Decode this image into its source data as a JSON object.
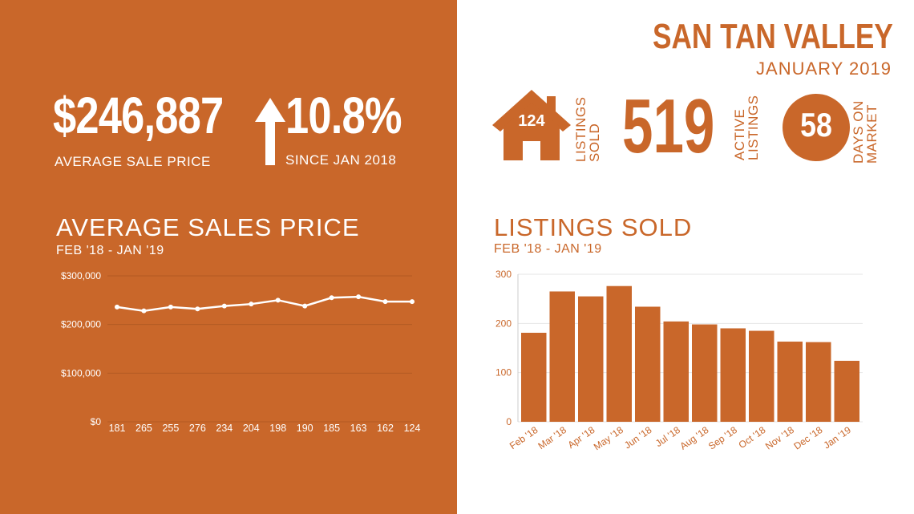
{
  "header": {
    "city": "SAN TAN VALLEY",
    "month": "JANUARY 2019"
  },
  "stats": {
    "average_price": "$246,887",
    "average_price_label": "AVERAGE  SALE PRICE",
    "change_pct": "10.8%",
    "change_label": "SINCE JAN 2018",
    "listings_sold_value": "124",
    "listings_sold_label_1": "LISTINGS",
    "listings_sold_label_2": "SOLD",
    "active_listings_value": "519",
    "active_listings_label_1": "ACTIVE",
    "active_listings_label_2": "LISTINGS",
    "days_on_market_value": "58",
    "days_on_market_label_1": "DAYS ON",
    "days_on_market_label_2": "MARKET"
  },
  "colors": {
    "brand": "#c9672a",
    "white": "#ffffff"
  },
  "icons": {
    "house": "house-icon",
    "arrow": "arrow-up-icon"
  },
  "chart_data": [
    {
      "type": "line",
      "title": "AVERAGE SALES PRICE",
      "subtitle": "FEB '18 - JAN '19",
      "categories": [
        "181",
        "265",
        "255",
        "276",
        "234",
        "204",
        "198",
        "190",
        "185",
        "163",
        "162",
        "124"
      ],
      "values": [
        236000,
        228000,
        236000,
        232000,
        238000,
        242000,
        250000,
        238000,
        255000,
        257000,
        247000,
        247000
      ],
      "ylim": [
        0,
        300000
      ],
      "yticks": [
        "$0",
        "$100,000",
        "$200,000",
        "$300,000"
      ],
      "ytick_values": [
        0,
        100000,
        200000,
        300000
      ],
      "grid": true
    },
    {
      "type": "bar",
      "title": "LISTINGS SOLD",
      "subtitle": "FEB '18 - JAN '19",
      "categories": [
        "Feb '18",
        "Mar '18",
        "Apr '18",
        "May '18",
        "Jun '18",
        "Jul '18",
        "Aug '18",
        "Sep '18",
        "Oct '18",
        "Nov '18",
        "Dec '18",
        "Jan '19"
      ],
      "values": [
        181,
        265,
        255,
        276,
        234,
        204,
        198,
        190,
        185,
        163,
        162,
        124
      ],
      "ylim": [
        0,
        300
      ],
      "yticks": [
        "0",
        "100",
        "200",
        "300"
      ],
      "ytick_values": [
        0,
        100,
        200,
        300
      ],
      "grid": true
    }
  ]
}
